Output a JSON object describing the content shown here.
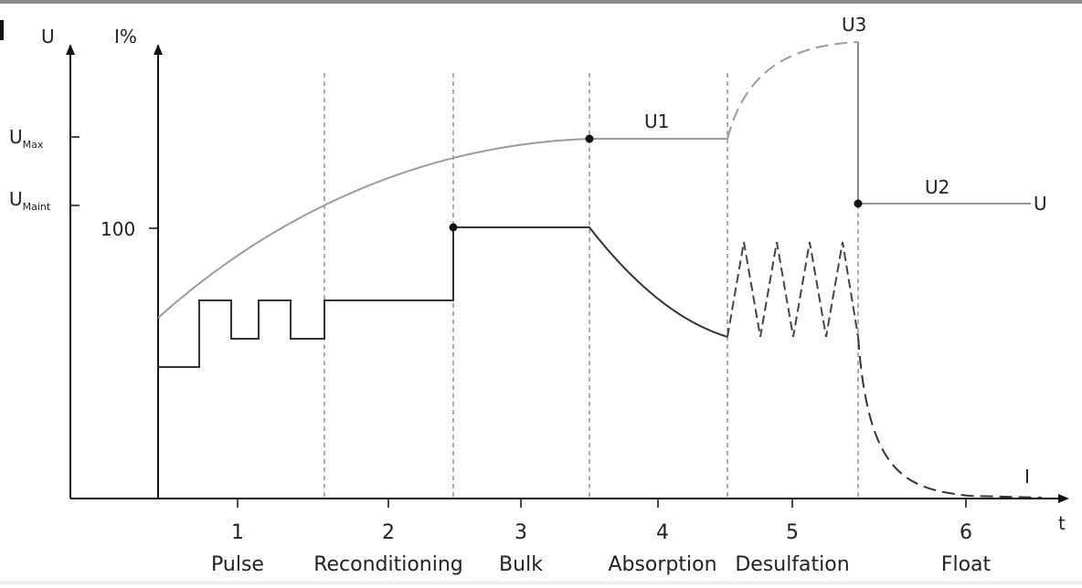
{
  "axes": {
    "u_axis_label": "U",
    "i_axis_label": "I%",
    "t_axis_label": "t",
    "u_max": {
      "main": "U",
      "sub": "Max"
    },
    "u_maint": {
      "main": "U",
      "sub": "Maint"
    },
    "tick_100": "100"
  },
  "curve_labels": {
    "u1": "U1",
    "u2": "U2",
    "u3": "U3",
    "u_end": "U",
    "i_end": "I"
  },
  "stages": [
    {
      "number": "1",
      "name": "Pulse"
    },
    {
      "number": "2",
      "name": "Reconditioning"
    },
    {
      "number": "3",
      "name": "Bulk"
    },
    {
      "number": "4",
      "name": "Absorption"
    },
    {
      "number": "5",
      "name": "Desulfation"
    },
    {
      "number": "6",
      "name": "Float"
    }
  ],
  "colors": {
    "axis": "#111111",
    "current_line": "#333333",
    "voltage_line": "#9a9a9a",
    "divider": "#777777"
  }
}
